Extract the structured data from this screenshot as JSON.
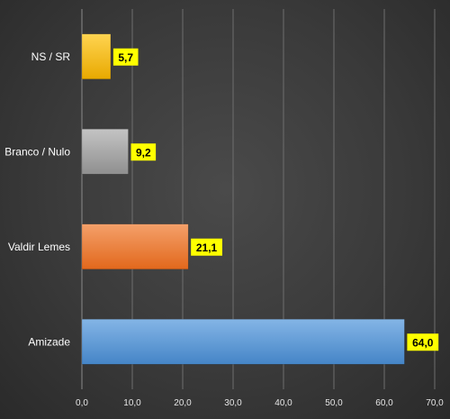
{
  "chart_data": {
    "type": "bar",
    "orientation": "horizontal",
    "categories": [
      "NS / SR",
      "Branco / Nulo",
      "Valdir Lemes",
      "Amizade"
    ],
    "values": [
      5.7,
      9.2,
      21.1,
      64.0
    ],
    "value_labels": [
      "5,7",
      "9,2",
      "21,1",
      "64,0"
    ],
    "colors": [
      "#f5b800",
      "#a6a6a6",
      "#ed7d31",
      "#5b9bd5"
    ],
    "xlim": [
      0,
      70
    ],
    "xticks": [
      0,
      10,
      20,
      30,
      40,
      50,
      60,
      70
    ],
    "xtick_labels": [
      "0,0",
      "10,0",
      "20,0",
      "30,0",
      "40,0",
      "50,0",
      "60,0",
      "70,0"
    ],
    "grid": "vertical",
    "data_label_style": {
      "background": "#ffff00",
      "color": "#000000"
    }
  }
}
